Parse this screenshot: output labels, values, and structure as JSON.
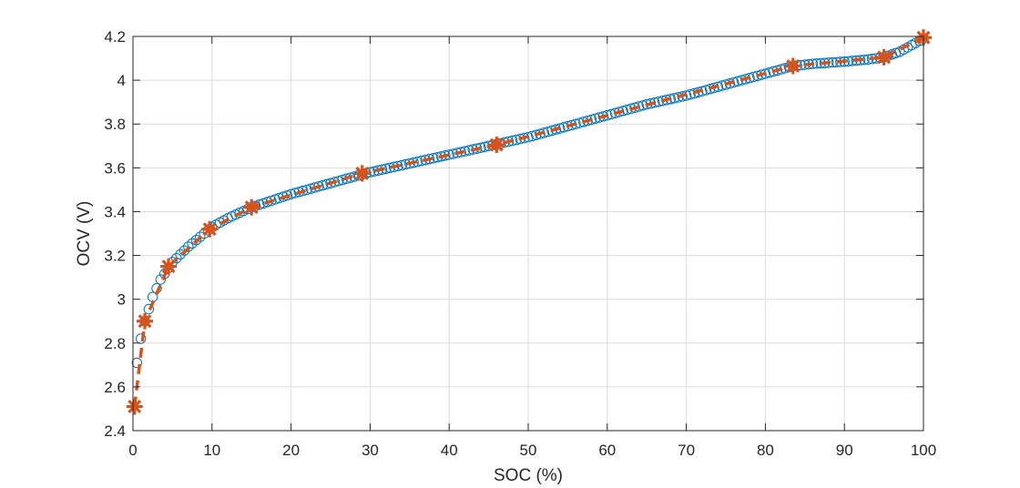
{
  "chart_data": {
    "type": "scatter",
    "title": "",
    "xlabel": "SOC (%)",
    "ylabel": "OCV (V)",
    "xlim": [
      0,
      100
    ],
    "ylim": [
      2.4,
      4.2
    ],
    "xticks": [
      0,
      10,
      20,
      30,
      40,
      50,
      60,
      70,
      80,
      90,
      100
    ],
    "xtick_labels": [
      "0",
      "10",
      "20",
      "30",
      "40",
      "50",
      "60",
      "70",
      "80",
      "90",
      "100"
    ],
    "yticks": [
      2.4,
      2.6,
      2.8,
      3.0,
      3.2,
      3.4,
      3.6,
      3.8,
      4.0,
      4.2
    ],
    "ytick_labels": [
      "2.4",
      "2.6",
      "2.8",
      "3",
      "3.2",
      "3.4",
      "3.6",
      "3.8",
      "4",
      "4.2"
    ],
    "grid": true,
    "series": [
      {
        "style": "markers-circle",
        "color": "#0072BD",
        "curve": [
          [
            0.5,
            2.71
          ],
          [
            1,
            2.82
          ],
          [
            1.5,
            2.9
          ],
          [
            2.5,
            3.01
          ],
          [
            3.5,
            3.09
          ],
          [
            5,
            3.17
          ],
          [
            7,
            3.24
          ],
          [
            10,
            3.33
          ],
          [
            12,
            3.37
          ],
          [
            15,
            3.42
          ],
          [
            20,
            3.48
          ],
          [
            25,
            3.53
          ],
          [
            30,
            3.58
          ],
          [
            35,
            3.62
          ],
          [
            40,
            3.66
          ],
          [
            45,
            3.7
          ],
          [
            50,
            3.74
          ],
          [
            55,
            3.79
          ],
          [
            60,
            3.84
          ],
          [
            65,
            3.89
          ],
          [
            70,
            3.93
          ],
          [
            75,
            3.98
          ],
          [
            80,
            4.03
          ],
          [
            83.5,
            4.065
          ],
          [
            86,
            4.075
          ],
          [
            90,
            4.085
          ],
          [
            93,
            4.095
          ],
          [
            95,
            4.105
          ],
          [
            97,
            4.13
          ],
          [
            100,
            4.19
          ]
        ],
        "sampled_points": 200
      },
      {
        "style": "dashed-line-asterisk",
        "color": "#D95319",
        "x": [
          0.2,
          1.5,
          4.5,
          9.7,
          15,
          29,
          46,
          83.5,
          95,
          100
        ],
        "y": [
          2.51,
          2.9,
          3.15,
          3.32,
          3.42,
          3.575,
          3.705,
          4.065,
          4.105,
          4.195
        ]
      }
    ]
  }
}
